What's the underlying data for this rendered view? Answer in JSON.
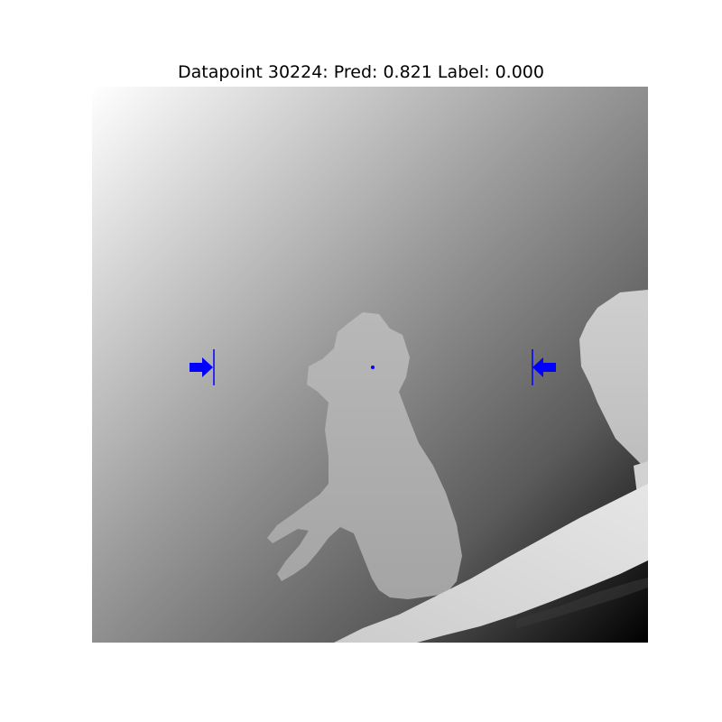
{
  "title": "Datapoint 30224: Pred: 0.821 Label: 0.000",
  "image": {
    "kind": "depth-map",
    "colormap": "grayscale",
    "subjects": [
      "cat-silhouette",
      "person-silhouette",
      "branch"
    ]
  },
  "markers": {
    "color": "#0000ff",
    "left_arrow_icon": "right-arrow-icon",
    "right_arrow_icon": "left-arrow-icon"
  }
}
